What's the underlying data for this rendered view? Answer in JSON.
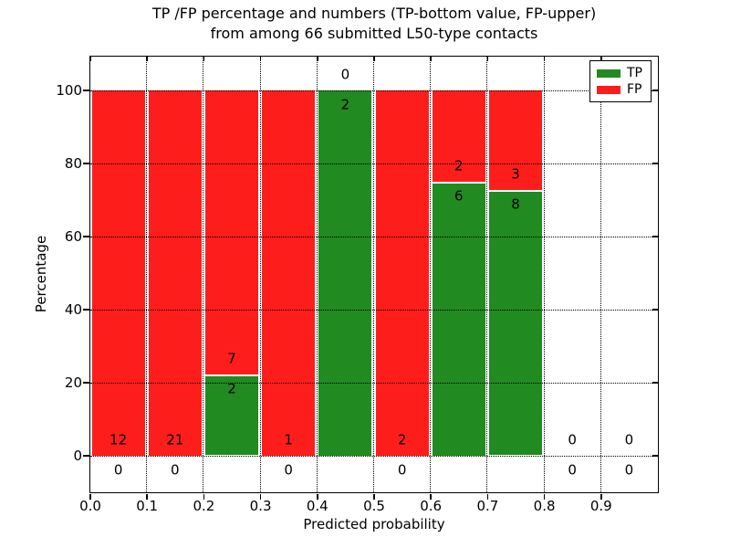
{
  "title": {
    "line1": "TP /FP percentage and numbers (TP-bottom value, FP-upper)",
    "line2": "from among 66 submitted L50-type contacts"
  },
  "axes": {
    "xlabel": "Predicted probability",
    "ylabel": "Percentage"
  },
  "legend": {
    "tp_label": "TP",
    "fp_label": "FP",
    "tp_color": "#218a21",
    "fp_color": "#fd1e1c"
  },
  "chart_data": {
    "type": "bar",
    "stacked": true,
    "title": "TP /FP percentage and numbers (TP-bottom value, FP-upper)\nfrom among 66 submitted L50-type contacts",
    "xlabel": "Predicted probability",
    "ylabel": "Percentage",
    "total_contacts": 66,
    "xlim": [
      0.0,
      1.0
    ],
    "ylim": [
      -9.75,
      109.25
    ],
    "xticks": [
      "0.0",
      "0.1",
      "0.2",
      "0.3",
      "0.4",
      "0.5",
      "0.6",
      "0.7",
      "0.8",
      "0.9"
    ],
    "yticks": [
      0,
      20,
      40,
      60,
      80,
      100
    ],
    "grid": {
      "style": "dotted",
      "color": "#000000"
    },
    "legend_position": "upper right",
    "colors": {
      "tp": "#218a21",
      "fp": "#fd1e1c"
    },
    "series": [
      {
        "name": "TP",
        "values_pct": [
          0,
          0,
          22.2,
          0,
          100,
          0,
          75.0,
          72.7,
          0,
          0
        ]
      },
      {
        "name": "FP",
        "values_pct": [
          100,
          100,
          77.8,
          100,
          0,
          100,
          25.0,
          27.3,
          0,
          0
        ]
      }
    ],
    "bins": [
      {
        "x_start": 0.0,
        "x_end": 0.1,
        "tp_count": 0,
        "fp_count": 12,
        "tp_pct": 0.0
      },
      {
        "x_start": 0.1,
        "x_end": 0.2,
        "tp_count": 0,
        "fp_count": 21,
        "tp_pct": 0.0
      },
      {
        "x_start": 0.2,
        "x_end": 0.3,
        "tp_count": 2,
        "fp_count": 7,
        "tp_pct": 22.2
      },
      {
        "x_start": 0.3,
        "x_end": 0.4,
        "tp_count": 0,
        "fp_count": 1,
        "tp_pct": 0.0
      },
      {
        "x_start": 0.4,
        "x_end": 0.5,
        "tp_count": 2,
        "fp_count": 0,
        "tp_pct": 100.0
      },
      {
        "x_start": 0.5,
        "x_end": 0.6,
        "tp_count": 0,
        "fp_count": 2,
        "tp_pct": 0.0
      },
      {
        "x_start": 0.6,
        "x_end": 0.7,
        "tp_count": 6,
        "fp_count": 2,
        "tp_pct": 75.0
      },
      {
        "x_start": 0.7,
        "x_end": 0.8,
        "tp_count": 8,
        "fp_count": 3,
        "tp_pct": 72.7
      },
      {
        "x_start": 0.8,
        "x_end": 0.9,
        "tp_count": 0,
        "fp_count": 0,
        "tp_pct": null
      },
      {
        "x_start": 0.9,
        "x_end": 1.0,
        "tp_count": 0,
        "fp_count": 0,
        "tp_pct": null
      }
    ]
  }
}
